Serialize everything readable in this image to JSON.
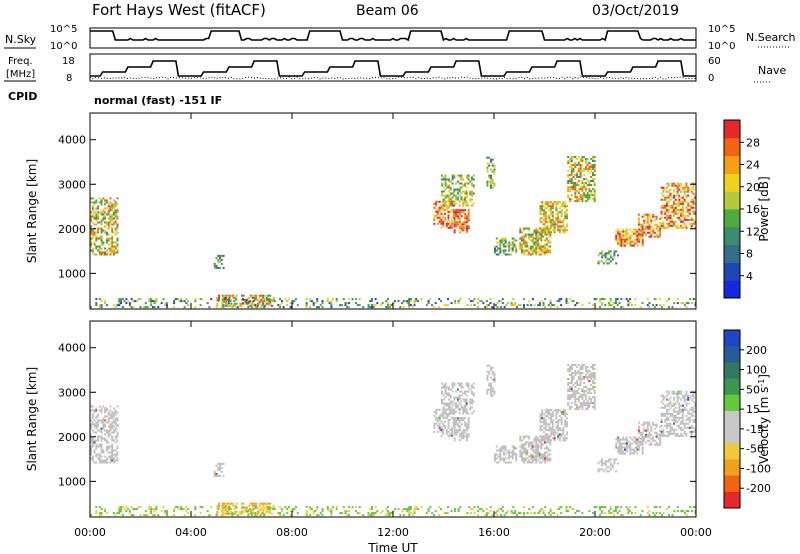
{
  "header": {
    "title": "Fort Hays West (fitACF)",
    "beam": "Beam 06",
    "date": "03/Oct/2019"
  },
  "params": {
    "nsky_label": "N.Sky",
    "nsearch_label": "N.Search",
    "freq_label_line1": "Freq.",
    "freq_label_line2": "[MHz]",
    "nave_label": "Nave",
    "cpid_label": "CPID",
    "cpid_text": "normal (fast) -151 IF",
    "nsky_ticks": [
      "10^5",
      "10^0"
    ],
    "nsearch_ticks": [
      "10^5",
      "10^0"
    ],
    "freq_ticks": [
      "18",
      "8"
    ],
    "nave_ticks": [
      "60",
      "0"
    ]
  },
  "colors": {
    "power_scale": [
      "#1428e0",
      "#1e46b4",
      "#326e8c",
      "#3c8c6e",
      "#50aa3c",
      "#b4c83c",
      "#f0d21e",
      "#f5a014",
      "#f06414",
      "#e62828"
    ],
    "velocity_scale": [
      "#1e46c8",
      "#285a96",
      "#327864",
      "#3c9650",
      "#64c83c",
      "#c8c8c8",
      "#c8c8c8",
      "#f0c83c",
      "#f0a01e",
      "#f06414",
      "#e62828"
    ],
    "ground_scatter": "#c0c0c0"
  },
  "chart_data": [
    {
      "type": "heatmap",
      "title": "",
      "xlabel": "",
      "ylabel": "Slant Range [km]",
      "xlim": [
        "00:00",
        "00:00"
      ],
      "ylim": [
        200,
        4600
      ],
      "yticks": [
        "1000",
        "2000",
        "3000",
        "4000"
      ],
      "colorbar": {
        "label": "Power [dB]",
        "range": [
          0,
          32
        ],
        "ticks": [
          "4",
          "8",
          "12",
          "16",
          "20",
          "24",
          "28"
        ]
      }
    },
    {
      "type": "heatmap",
      "title": "",
      "xlabel": "Time UT",
      "ylabel": "Slant Range [km]",
      "xlim": [
        "00:00",
        "00:00"
      ],
      "xticks": [
        "00:00",
        "04:00",
        "08:00",
        "12:00",
        "16:00",
        "20:00",
        "00:00"
      ],
      "ylim": [
        200,
        4600
      ],
      "yticks": [
        "1000",
        "2000",
        "3000",
        "4000"
      ],
      "colorbar": {
        "label": "Velocity [m s-1]",
        "ticks": [
          "200",
          "100",
          "50",
          "15",
          "-15",
          "-50",
          "-100",
          "-200"
        ]
      }
    }
  ]
}
